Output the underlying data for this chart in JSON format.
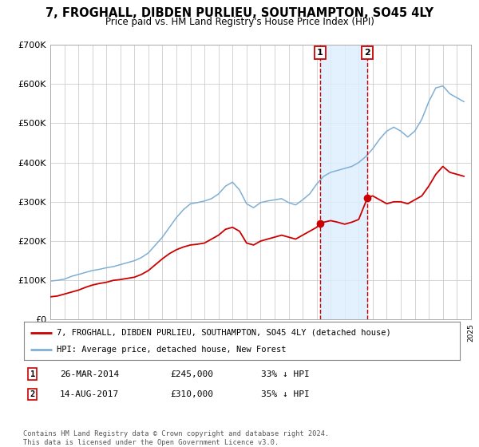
{
  "title": "7, FROGHALL, DIBDEN PURLIEU, SOUTHAMPTON, SO45 4LY",
  "subtitle": "Price paid vs. HM Land Registry's House Price Index (HPI)",
  "legend_line1": "7, FROGHALL, DIBDEN PURLIEU, SOUTHAMPTON, SO45 4LY (detached house)",
  "legend_line2": "HPI: Average price, detached house, New Forest",
  "red_color": "#cc0000",
  "blue_color": "#7fafd4",
  "bg_color": "#ffffff",
  "chart_bg": "#ffffff",
  "grid_color": "#cccccc",
  "shade_color": "#ddeeff",
  "ylim": [
    0,
    700000
  ],
  "yticks": [
    0,
    100000,
    200000,
    300000,
    400000,
    500000,
    600000,
    700000
  ],
  "ytick_labels": [
    "£0",
    "£100K",
    "£200K",
    "£300K",
    "£400K",
    "£500K",
    "£600K",
    "£700K"
  ],
  "year_start": 1995,
  "year_end": 2025,
  "transaction1_date": 2014.23,
  "transaction1_value": 245000,
  "transaction1_label": "26-MAR-2014",
  "transaction1_price": "£245,000",
  "transaction1_pct": "33% ↓ HPI",
  "transaction2_date": 2017.62,
  "transaction2_value": 310000,
  "transaction2_label": "14-AUG-2017",
  "transaction2_price": "£310,000",
  "transaction2_pct": "35% ↓ HPI",
  "copyright": "Contains HM Land Registry data © Crown copyright and database right 2024.\nThis data is licensed under the Open Government Licence v3.0.",
  "red_line_data": {
    "years": [
      1995.0,
      1995.5,
      1996.0,
      1996.5,
      1997.0,
      1997.5,
      1998.0,
      1998.5,
      1999.0,
      1999.5,
      2000.0,
      2000.5,
      2001.0,
      2001.5,
      2002.0,
      2002.5,
      2003.0,
      2003.5,
      2004.0,
      2004.5,
      2005.0,
      2005.5,
      2006.0,
      2006.5,
      2007.0,
      2007.5,
      2008.0,
      2008.5,
      2009.0,
      2009.5,
      2010.0,
      2010.5,
      2011.0,
      2011.5,
      2012.0,
      2012.5,
      2013.0,
      2013.5,
      2014.0,
      2014.23,
      2014.5,
      2015.0,
      2015.5,
      2016.0,
      2016.5,
      2017.0,
      2017.62,
      2018.0,
      2018.5,
      2019.0,
      2019.5,
      2020.0,
      2020.5,
      2021.0,
      2021.5,
      2022.0,
      2022.5,
      2023.0,
      2023.5,
      2024.0,
      2024.5
    ],
    "values": [
      58000,
      60000,
      65000,
      70000,
      75000,
      82000,
      88000,
      92000,
      95000,
      100000,
      102000,
      105000,
      108000,
      115000,
      125000,
      140000,
      155000,
      168000,
      178000,
      185000,
      190000,
      192000,
      195000,
      205000,
      215000,
      230000,
      235000,
      225000,
      195000,
      190000,
      200000,
      205000,
      210000,
      215000,
      210000,
      205000,
      215000,
      225000,
      235000,
      245000,
      248000,
      252000,
      248000,
      243000,
      248000,
      255000,
      310000,
      315000,
      305000,
      295000,
      300000,
      300000,
      295000,
      305000,
      315000,
      340000,
      370000,
      390000,
      375000,
      370000,
      365000
    ]
  },
  "blue_line_data": {
    "years": [
      1995.0,
      1995.5,
      1996.0,
      1996.5,
      1997.0,
      1997.5,
      1998.0,
      1998.5,
      1999.0,
      1999.5,
      2000.0,
      2000.5,
      2001.0,
      2001.5,
      2002.0,
      2002.5,
      2003.0,
      2003.5,
      2004.0,
      2004.5,
      2005.0,
      2005.5,
      2006.0,
      2006.5,
      2007.0,
      2007.5,
      2008.0,
      2008.5,
      2009.0,
      2009.5,
      2010.0,
      2010.5,
      2011.0,
      2011.5,
      2012.0,
      2012.5,
      2013.0,
      2013.5,
      2014.0,
      2014.5,
      2015.0,
      2015.5,
      2016.0,
      2016.5,
      2017.0,
      2017.5,
      2018.0,
      2018.5,
      2019.0,
      2019.5,
      2020.0,
      2020.5,
      2021.0,
      2021.5,
      2022.0,
      2022.5,
      2023.0,
      2023.5,
      2024.0,
      2024.5
    ],
    "values": [
      98000,
      100000,
      103000,
      110000,
      115000,
      120000,
      125000,
      128000,
      132000,
      135000,
      140000,
      145000,
      150000,
      158000,
      170000,
      190000,
      210000,
      235000,
      260000,
      280000,
      295000,
      298000,
      302000,
      308000,
      320000,
      340000,
      350000,
      330000,
      295000,
      285000,
      298000,
      302000,
      305000,
      308000,
      298000,
      292000,
      305000,
      320000,
      345000,
      365000,
      375000,
      380000,
      385000,
      390000,
      400000,
      415000,
      435000,
      460000,
      480000,
      490000,
      480000,
      465000,
      480000,
      510000,
      555000,
      590000,
      595000,
      575000,
      565000,
      555000
    ]
  }
}
